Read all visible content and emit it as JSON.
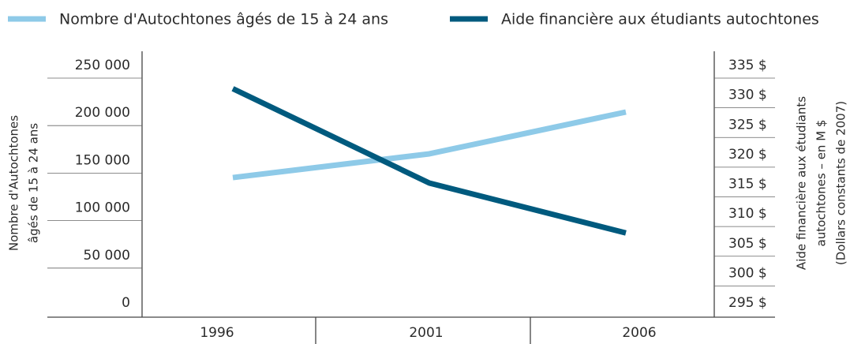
{
  "chart_data": {
    "type": "line",
    "categories": [
      "1996",
      "2001",
      "2006"
    ],
    "series": [
      {
        "name": "Nombre d'Autochtones âgés de 15 à 24 ans",
        "color": "#8ecae8",
        "values": [
          132000,
          157000,
          201000
        ]
      },
      {
        "name": "Aide financière aux étudiants autochtones",
        "color": "#005a7e",
        "values": [
          331.1,
          315.2,
          306.8
        ],
        "axis": "y2"
      }
    ],
    "y_label": [
      "Nombre d'Autochtones",
      "âgés de 15 à 24 ans"
    ],
    "y2_label": [
      "Aide financière aux étudiants",
      "autochtones – en M $",
      "(Dollars constants de 2007)"
    ],
    "ylim": [
      0,
      250000
    ],
    "yticks": [
      {
        "value": 0,
        "label": "0"
      },
      {
        "value": 50000,
        "label": "50 000"
      },
      {
        "value": 100000,
        "label": "100 000"
      },
      {
        "value": 150000,
        "label": "150 000"
      },
      {
        "value": 200000,
        "label": "200 000"
      },
      {
        "value": 250000,
        "label": "250 000"
      }
    ],
    "y2lim": [
      295,
      335
    ],
    "y2ticks": [
      {
        "value": 295,
        "label": "295 $"
      },
      {
        "value": 300,
        "label": "300 $"
      },
      {
        "value": 305,
        "label": "305 $"
      },
      {
        "value": 310,
        "label": "310 $"
      },
      {
        "value": 315,
        "label": "315 $"
      },
      {
        "value": 320,
        "label": "320 $"
      },
      {
        "value": 325,
        "label": "325 $"
      },
      {
        "value": 330,
        "label": "330 $"
      },
      {
        "value": 335,
        "label": "335 $"
      }
    ],
    "legend": "top"
  }
}
